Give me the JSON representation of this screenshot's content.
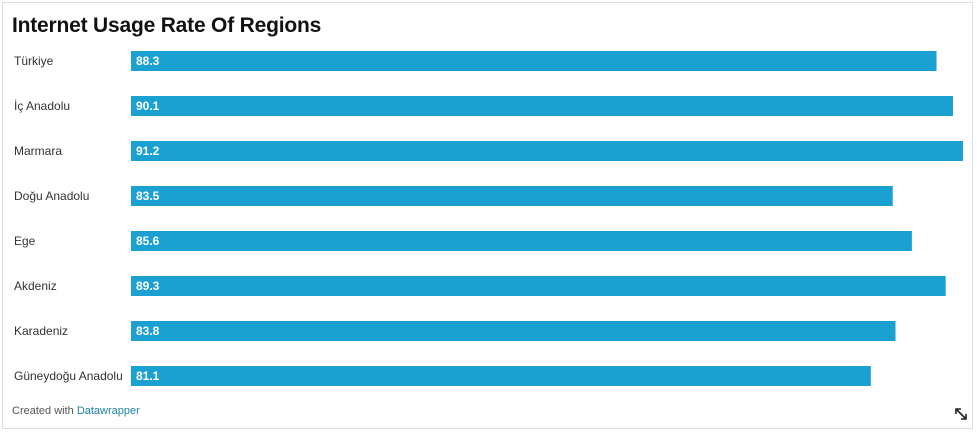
{
  "chart_data": {
    "type": "bar",
    "orientation": "horizontal",
    "title": "Internet Usage Rate Of Regions",
    "categories": [
      "Türkiye",
      "İç Anadolu",
      "Marmara",
      "Doğu Anadolu",
      "Ege",
      "Akdeniz",
      "Karadeniz",
      "Güneydoğu Anadolu"
    ],
    "values": [
      88.3,
      90.1,
      91.2,
      83.5,
      85.6,
      89.3,
      83.8,
      81.1
    ],
    "value_labels": [
      "88.3",
      "90.1",
      "91.2",
      "83.5",
      "85.6",
      "89.3",
      "83.8",
      "81.1"
    ],
    "xlim": [
      0,
      91.2
    ],
    "grid": false,
    "legend": "none",
    "bar_color": "#1ba1d1"
  },
  "footer": {
    "prefix": "Created with ",
    "brand": "Datawrapper"
  },
  "icons": {
    "expand": "expand-arrows-icon"
  },
  "colors": {
    "bar": "#1ba1d1",
    "brand_link": "#1d81a2"
  }
}
